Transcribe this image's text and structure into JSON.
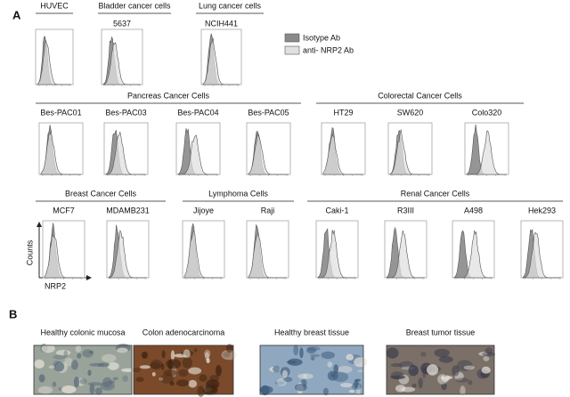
{
  "panel_a": {
    "label": "A",
    "top_row": [
      {
        "title": "HUVEC"
      },
      {
        "title": "Bladder cancer cells",
        "cell_line": "5637"
      },
      {
        "title": "Lung cancer cells",
        "cell_line": "NCIH441"
      }
    ],
    "legend": [
      "Isotype  Ab",
      "anti- NRP2 Ab"
    ],
    "groups": [
      {
        "title": "Pancreas Cancer Cells",
        "cell_lines": [
          "Bes-PAC01",
          "Bes-PAC03",
          "Bes-PAC04",
          "Bes-PAC05"
        ]
      },
      {
        "title": "Colorectal Cancer Cells",
        "cell_lines": [
          "HT29",
          "SW620",
          "Colo320"
        ]
      },
      {
        "title": "Breast Cancer Cells",
        "cell_lines": [
          "MCF7",
          "MDAMB231"
        ]
      },
      {
        "title": "Lymphoma Cells",
        "cell_lines": [
          "Jijoye",
          "Raji"
        ]
      },
      {
        "title": "Renal Cancer Cells",
        "cell_lines": [
          "Caki-1",
          "R3III",
          "A498",
          "Hek293"
        ]
      }
    ],
    "y_axis_label": "Counts",
    "x_axis_label": "NRP2"
  },
  "panel_b": {
    "label": "B",
    "images": [
      {
        "caption": "Healthy colonic mucosa"
      },
      {
        "caption": "Colon adenocarcinoma"
      },
      {
        "caption": "Healthy breast tissue"
      },
      {
        "caption": "Breast tumor  tissue"
      }
    ]
  }
}
